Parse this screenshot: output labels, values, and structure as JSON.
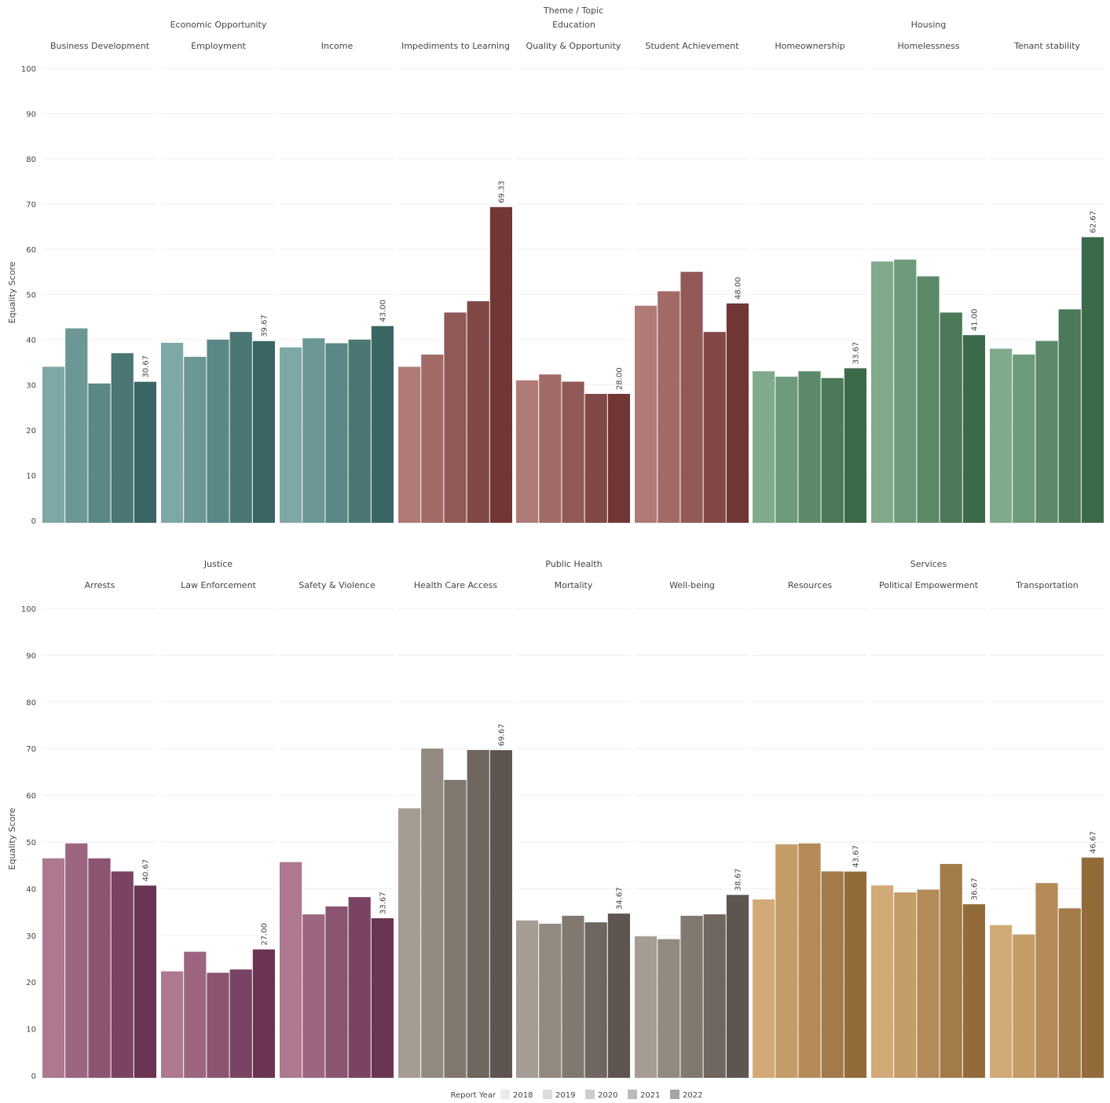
{
  "header": {
    "facet_title": "Theme  /  Topic"
  },
  "axis": {
    "ylabel": "Equality Score",
    "ylim": [
      0,
      100
    ],
    "ticks": [
      0,
      10,
      20,
      30,
      40,
      50,
      60,
      70,
      80,
      90,
      100
    ]
  },
  "legend": {
    "title": "Report Year",
    "years": [
      "2018",
      "2019",
      "2020",
      "2021",
      "2022"
    ],
    "swatch_colors": [
      "#ebebeb",
      "#dcdcdc",
      "#cccccc",
      "#bbbbbb",
      "#a8a4a8"
    ],
    "placement": "bottom"
  },
  "chart_data": {
    "type": "bar",
    "categories": [
      "2018",
      "2019",
      "2020",
      "2021",
      "2022"
    ],
    "ylabel": "Equality Score",
    "ylim": [
      0,
      100
    ],
    "rows": [
      {
        "themes": [
          {
            "name": "Economic Opportunity",
            "colors": [
              "#7ea8a6",
              "#6b9795",
              "#5a8886",
              "#4a7674",
              "#3a6664"
            ],
            "topics": [
              {
                "name": "Business Development",
                "values": [
                  34.0,
                  42.5,
                  30.3,
                  37.0,
                  30.67
                ],
                "label": "30.67"
              },
              {
                "name": "Employment",
                "values": [
                  39.3,
                  36.2,
                  40.0,
                  41.7,
                  39.67
                ],
                "label": "39.67"
              },
              {
                "name": "Income",
                "values": [
                  38.3,
                  40.3,
                  39.2,
                  40.0,
                  43.0
                ],
                "label": "43.00"
              }
            ]
          },
          {
            "name": "Education",
            "colors": [
              "#b07a76",
              "#a26b67",
              "#915957",
              "#824847",
              "#723637"
            ],
            "topics": [
              {
                "name": "Impediments to Learning",
                "values": [
                  34.0,
                  36.7,
                  46.0,
                  48.5,
                  69.33
                ],
                "label": "69.33"
              },
              {
                "name": "Quality & Opportunity",
                "values": [
                  31.0,
                  32.3,
                  30.7,
                  28.0,
                  28.0
                ],
                "label": "28.00"
              },
              {
                "name": "Student Achievement",
                "values": [
                  47.5,
                  50.7,
                  55.0,
                  41.7,
                  48.0
                ],
                "label": "48.00"
              }
            ]
          },
          {
            "name": "Housing",
            "colors": [
              "#80aa8c",
              "#6d9a7a",
              "#5c8a69",
              "#4b795a",
              "#3b6a4b"
            ],
            "topics": [
              {
                "name": "Homeownership",
                "values": [
                  33.0,
                  31.8,
                  33.0,
                  31.5,
                  33.67
                ],
                "label": "33.67"
              },
              {
                "name": "Homelessness",
                "values": [
                  57.3,
                  57.7,
                  54.0,
                  46.0,
                  41.0
                ],
                "label": "41.00"
              },
              {
                "name": "Tenant stability",
                "values": [
                  38.0,
                  36.7,
                  39.7,
                  46.7,
                  62.67
                ],
                "label": "62.67"
              }
            ]
          }
        ]
      },
      {
        "themes": [
          {
            "name": "Justice",
            "colors": [
              "#ad7890",
              "#9c6680",
              "#8b5471",
              "#7a4363",
              "#6a3452"
            ],
            "topics": [
              {
                "name": "Arrests",
                "values": [
                  46.5,
                  49.7,
                  46.5,
                  43.7,
                  40.67
                ],
                "label": "40.67"
              },
              {
                "name": "Law Enforcement",
                "values": [
                  22.3,
                  26.5,
                  22.0,
                  22.7,
                  27.0
                ],
                "label": "27.00"
              },
              {
                "name": "Safety & Violence",
                "values": [
                  45.7,
                  34.5,
                  36.2,
                  38.2,
                  33.67
                ],
                "label": "33.67"
              }
            ]
          },
          {
            "name": "Public Health",
            "colors": [
              "#a59d93",
              "#928a80",
              "#817870",
              "#6f6660",
              "#5e5551"
            ],
            "topics": [
              {
                "name": "Health Care Access",
                "values": [
                  57.2,
                  70.0,
                  63.3,
                  69.7,
                  69.67
                ],
                "label": "69.67"
              },
              {
                "name": "Mortality",
                "values": [
                  33.2,
                  32.5,
                  34.2,
                  32.8,
                  34.67
                ],
                "label": "34.67"
              },
              {
                "name": "Well-being",
                "values": [
                  29.8,
                  29.2,
                  34.2,
                  34.5,
                  38.67
                ],
                "label": "38.67"
              }
            ]
          },
          {
            "name": "Services",
            "colors": [
              "#d2aa78",
              "#c39c68",
              "#b38a58",
              "#a27b49",
              "#936b3b"
            ],
            "topics": [
              {
                "name": "Resources",
                "values": [
                  37.7,
                  49.5,
                  49.7,
                  43.7,
                  43.67
                ],
                "label": "43.67"
              },
              {
                "name": "Political Empowerment",
                "values": [
                  40.7,
                  39.2,
                  39.8,
                  45.3,
                  36.67
                ],
                "label": "36.67"
              },
              {
                "name": "Transportation",
                "values": [
                  32.2,
                  30.2,
                  41.2,
                  35.8,
                  46.67
                ],
                "label": "46.67"
              }
            ]
          }
        ]
      }
    ]
  }
}
